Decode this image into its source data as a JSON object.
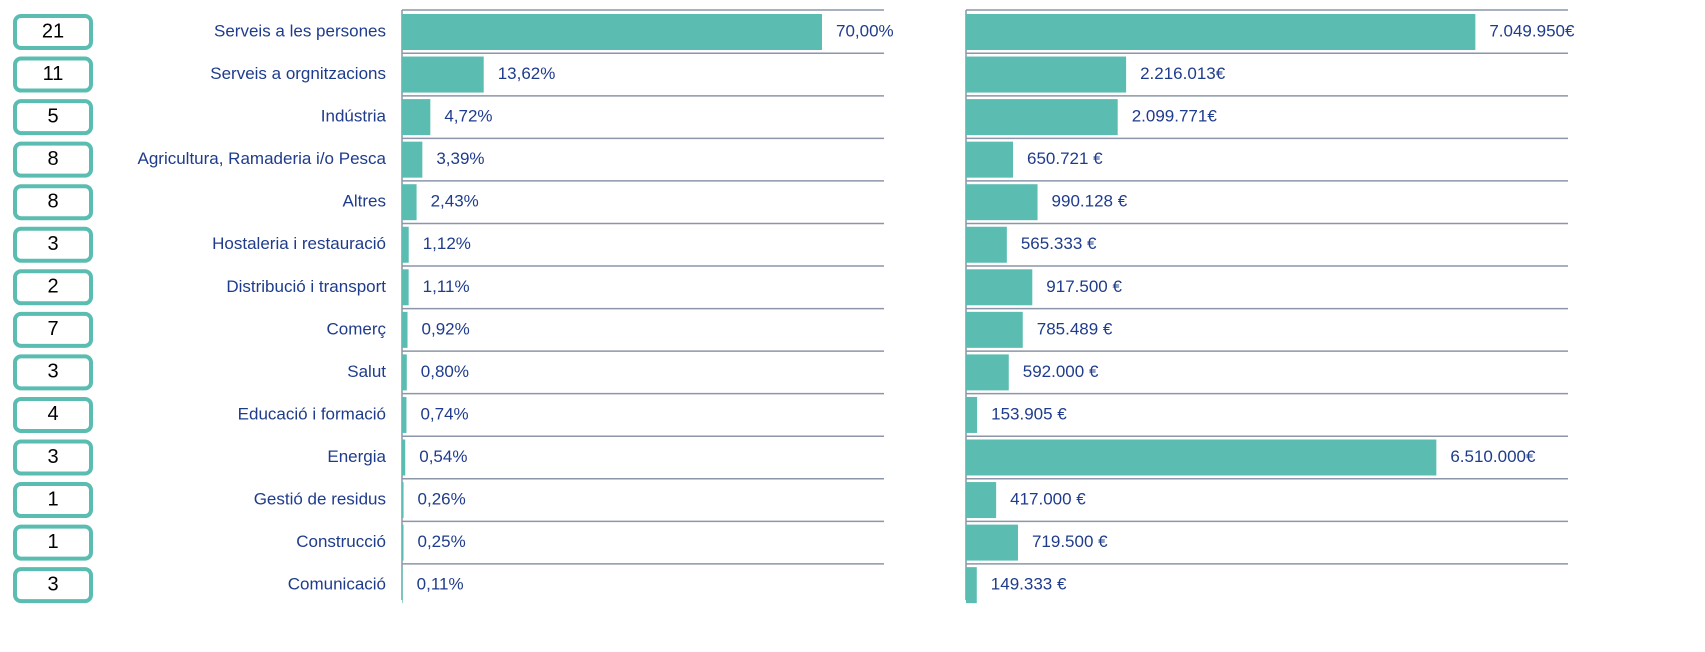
{
  "chart_data": [
    {
      "type": "bar",
      "categories": [
        "Serveis a les persones",
        "Serveis a orgnitzacions",
        "Indústria",
        "Agricultura, Ramaderia i/o Pesca",
        "Altres",
        "Hostaleria i restauració",
        "Distribució i transport",
        "Comerç",
        "Salut",
        "Educació i formació",
        "Energia",
        "Gestió de residus",
        "Construcció",
        "Comunicació"
      ],
      "counts": [
        21,
        11,
        5,
        8,
        8,
        3,
        2,
        7,
        3,
        4,
        3,
        1,
        1,
        3
      ],
      "values": [
        70.0,
        13.62,
        4.72,
        3.39,
        2.43,
        1.12,
        1.11,
        0.92,
        0.8,
        0.74,
        0.54,
        0.26,
        0.25,
        0.11
      ],
      "value_labels": [
        "70,00%",
        "13,62%",
        "4,72%",
        "3,39%",
        "2,43%",
        "1,12%",
        "1,11%",
        "0,92%",
        "0,80%",
        "0,74%",
        "0,54%",
        "0,26%",
        "0,25%",
        "0,11%"
      ],
      "color": "#5bbdb2",
      "xlim": [
        0,
        80
      ]
    },
    {
      "type": "bar",
      "values": [
        7049950,
        2216013,
        2099771,
        650721,
        990128,
        565333,
        917500,
        785489,
        592000,
        153905,
        6510000,
        417000,
        719500,
        149333
      ],
      "value_labels": [
        "7.049.950€",
        "2.216.013€",
        "2.099.771€",
        "650.721 €",
        "990.128 €",
        "565.333 €",
        "917.500 €",
        "785.489 €",
        "592.000 €",
        "153.905 €",
        "6.510.000€",
        "417.000 €",
        "719.500 €",
        "149.333 €"
      ],
      "color": "#5bbdb2",
      "xlim": [
        0,
        8000000
      ]
    }
  ]
}
